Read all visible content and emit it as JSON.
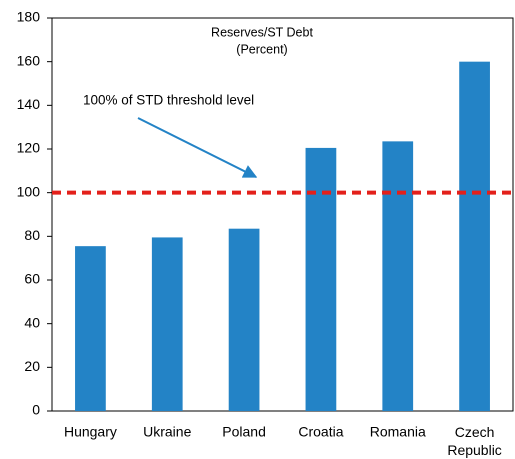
{
  "chart_data": {
    "type": "bar",
    "title": "Reserves/ST Debt",
    "subtitle": "(Percent)",
    "categories": [
      "Hungary",
      "Ukraine",
      "Poland",
      "Croatia",
      "Romania",
      "Czech Republic"
    ],
    "values": [
      75.5,
      79.5,
      83.5,
      120.5,
      123.5,
      160
    ],
    "color": "#2383c6",
    "ylim": [
      0,
      180
    ],
    "yticks": [
      0,
      20,
      40,
      60,
      80,
      100,
      120,
      140,
      160,
      180
    ],
    "threshold": 100,
    "threshold_color": "#e3201b",
    "annotation": "100% of STD threshold level"
  }
}
